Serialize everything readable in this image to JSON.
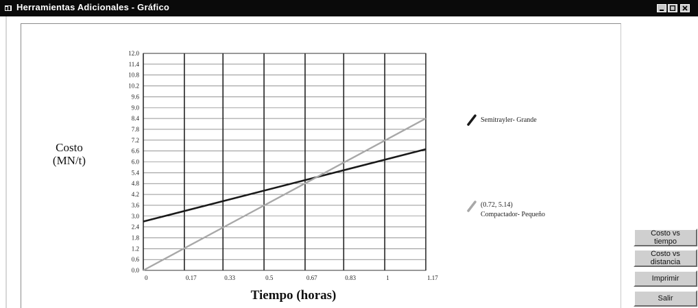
{
  "window": {
    "title": "Herramientas Adicionales - Gráfico",
    "icons": [
      "app-icon",
      "minimize-icon",
      "maximize-icon",
      "close-icon"
    ]
  },
  "buttons": {
    "costo_vs_tiempo": "Costo vs tiempo",
    "costo_vs_distancia": "Costo vs distancia",
    "imprimir": "Imprimir",
    "salir": "Salir"
  },
  "chart_data": {
    "type": "line",
    "title": "",
    "xlabel": "Tiempo (horas)",
    "ylabel_lines": [
      "Costo",
      "(MN/t)"
    ],
    "x_ticks": [
      "0",
      "0.17",
      "0.33",
      "0.5",
      "0.67",
      "0.83",
      "1",
      "1.17"
    ],
    "x_tick_values": [
      0,
      0.17,
      0.33,
      0.5,
      0.67,
      0.83,
      1,
      1.17
    ],
    "y_ticks": [
      "0.0",
      "0.6",
      "1.2",
      "1.8",
      "2.4",
      "3.0",
      "3.6",
      "4.2",
      "4.8",
      "5.4",
      "6.0",
      "6.6",
      "7.2",
      "7.8",
      "8.4",
      "9.0",
      "9.6",
      "10.2",
      "10.8",
      "11.4",
      "12.0"
    ],
    "xlim": [
      0,
      1.17
    ],
    "ylim": [
      0,
      12.0
    ],
    "grid": true,
    "legend_position": "right",
    "series": [
      {
        "name": "Semitrayler- Grande",
        "color": "#1a1a1a",
        "x": [
          0,
          1.17
        ],
        "y": [
          2.7,
          6.7
        ]
      },
      {
        "name": "Compactador- Pequeño",
        "color": "#a8a8a8",
        "x": [
          0,
          1.17
        ],
        "y": [
          0.0,
          8.4
        ]
      }
    ],
    "annotation": "(0.72, 5.14)"
  }
}
